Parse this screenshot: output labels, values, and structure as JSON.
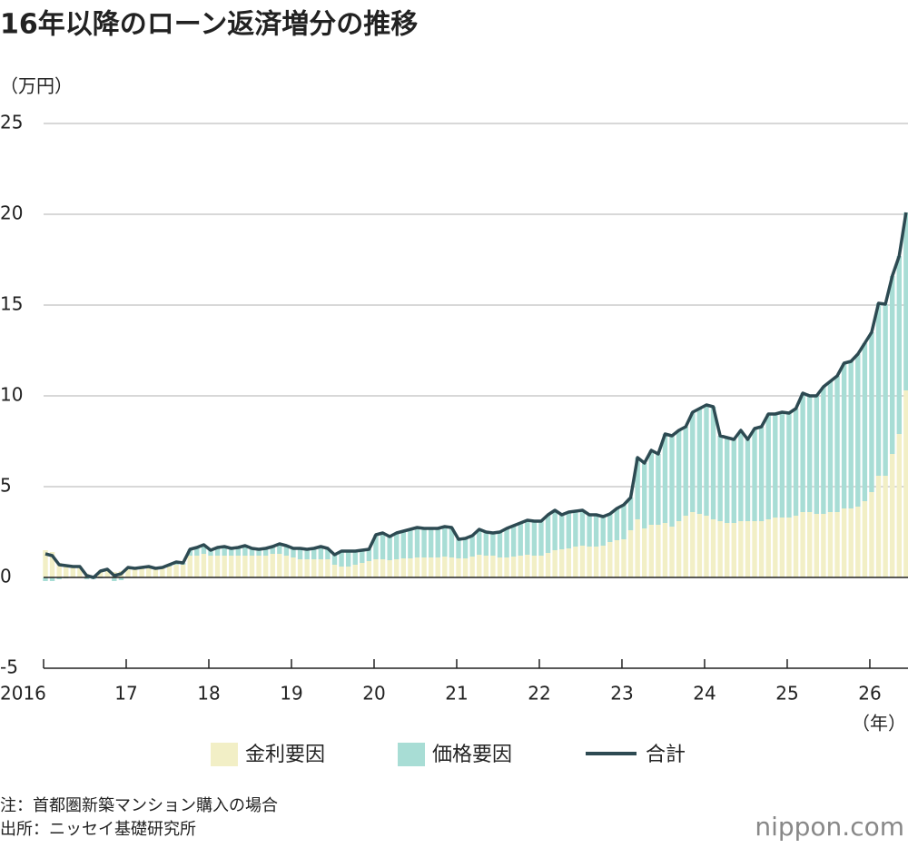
{
  "chart_data": {
    "type": "stacked-bar-line",
    "title": "16年以降のローン返済増分の推移",
    "y_unit": "（万円）",
    "x_unit": "（年）",
    "note": "注：首都圏新築マンション購入の場合",
    "source": "出所：ニッセイ基礎研究所",
    "brand": "nippon.com",
    "ylim": [
      -5,
      25
    ],
    "yticks": [
      -5,
      0,
      5,
      10,
      15,
      20,
      25
    ],
    "grid": true,
    "categories": [
      "2016",
      null,
      null,
      null,
      null,
      null,
      null,
      null,
      null,
      null,
      null,
      null,
      "17",
      null,
      null,
      null,
      null,
      null,
      null,
      null,
      null,
      null,
      null,
      null,
      "18",
      null,
      null,
      null,
      null,
      null,
      null,
      null,
      null,
      null,
      null,
      null,
      "19",
      null,
      null,
      null,
      null,
      null,
      null,
      null,
      null,
      null,
      null,
      null,
      "20",
      null,
      null,
      null,
      null,
      null,
      null,
      null,
      null,
      null,
      null,
      null,
      "21",
      null,
      null,
      null,
      null,
      null,
      null,
      null,
      null,
      null,
      null,
      null,
      "22",
      null,
      null,
      null,
      null,
      null,
      null,
      null,
      null,
      null,
      null,
      null,
      "23",
      null,
      null,
      null,
      null,
      null,
      null,
      null,
      null,
      null,
      null,
      null,
      "24",
      null,
      null,
      null,
      null,
      null,
      null,
      null,
      null,
      null,
      null,
      null,
      "25",
      null,
      null,
      null,
      null,
      null,
      null,
      null,
      null,
      null,
      null,
      null,
      "26",
      null,
      null,
      null,
      null,
      null
    ],
    "series": [
      {
        "name": "金利要因",
        "color": "#f2efc6",
        "kind": "bar",
        "values": [
          1.5,
          1.4,
          0.8,
          0.7,
          0.6,
          0.6,
          0.2,
          0.1,
          0.4,
          0.45,
          0.3,
          0.35,
          0.5,
          0.5,
          0.5,
          0.5,
          0.5,
          0.5,
          0.6,
          0.7,
          0.7,
          1.2,
          1.2,
          1.3,
          1.2,
          1.2,
          1.2,
          1.2,
          1.2,
          1.2,
          1.2,
          1.2,
          1.2,
          1.3,
          1.3,
          1.2,
          1.1,
          1.0,
          1.0,
          1.0,
          1.0,
          1.0,
          0.7,
          0.6,
          0.6,
          0.7,
          0.8,
          0.9,
          1.0,
          1.0,
          0.95,
          1.0,
          1.05,
          1.05,
          1.1,
          1.1,
          1.1,
          1.1,
          1.15,
          1.1,
          1.05,
          1.05,
          1.15,
          1.25,
          1.2,
          1.2,
          1.1,
          1.1,
          1.15,
          1.2,
          1.25,
          1.2,
          1.2,
          1.35,
          1.5,
          1.55,
          1.6,
          1.7,
          1.75,
          1.7,
          1.7,
          1.75,
          1.95,
          2.05,
          2.1,
          2.6,
          3.2,
          2.7,
          2.9,
          2.9,
          3.0,
          2.8,
          3.1,
          3.4,
          3.6,
          3.5,
          3.4,
          3.2,
          3.1,
          3.0,
          3.0,
          3.1,
          3.1,
          3.1,
          3.1,
          3.2,
          3.3,
          3.3,
          3.3,
          3.4,
          3.6,
          3.6,
          3.5,
          3.5,
          3.6,
          3.6,
          3.8,
          3.8,
          3.9,
          4.2,
          4.7,
          5.6,
          5.6,
          6.8,
          7.9,
          10.3
        ]
      },
      {
        "name": "価格要因",
        "color": "#a8ddd5",
        "kind": "bar",
        "values": [
          -0.2,
          -0.2,
          -0.1,
          -0.05,
          0,
          0,
          -0.1,
          -0.1,
          -0.05,
          0,
          -0.2,
          -0.15,
          0.05,
          0,
          0.05,
          0.1,
          0,
          0.05,
          0.1,
          0.15,
          0.1,
          0.35,
          0.45,
          0.5,
          0.3,
          0.45,
          0.5,
          0.4,
          0.45,
          0.55,
          0.4,
          0.35,
          0.4,
          0.4,
          0.55,
          0.55,
          0.5,
          0.6,
          0.55,
          0.6,
          0.7,
          0.6,
          0.55,
          0.85,
          0.85,
          0.75,
          0.7,
          0.65,
          1.35,
          1.45,
          1.3,
          1.45,
          1.5,
          1.6,
          1.65,
          1.6,
          1.6,
          1.6,
          1.65,
          1.65,
          1.05,
          1.1,
          1.15,
          1.4,
          1.3,
          1.25,
          1.4,
          1.6,
          1.7,
          1.8,
          1.9,
          1.9,
          1.9,
          2.1,
          2.2,
          1.9,
          2.0,
          1.95,
          1.95,
          1.75,
          1.75,
          1.6,
          1.55,
          1.75,
          1.9,
          1.8,
          3.4,
          3.6,
          4.1,
          3.9,
          4.9,
          5.0,
          5.0,
          4.9,
          5.5,
          5.8,
          6.1,
          6.2,
          4.7,
          4.7,
          4.6,
          5.0,
          4.5,
          5.1,
          5.2,
          5.8,
          5.7,
          5.8,
          5.75,
          5.9,
          6.55,
          6.4,
          6.5,
          7.0,
          7.2,
          7.5,
          8.0,
          8.1,
          8.4,
          8.7,
          8.8,
          9.5,
          9.45,
          9.8,
          9.8,
          9.8
        ]
      },
      {
        "name": "合計",
        "color": "#2d4a52",
        "kind": "line",
        "values": [
          1.3,
          1.2,
          0.7,
          0.65,
          0.6,
          0.6,
          0.1,
          0.0,
          0.35,
          0.45,
          0.1,
          0.2,
          0.55,
          0.5,
          0.55,
          0.6,
          0.5,
          0.55,
          0.7,
          0.85,
          0.8,
          1.55,
          1.65,
          1.8,
          1.5,
          1.65,
          1.7,
          1.6,
          1.65,
          1.75,
          1.6,
          1.55,
          1.6,
          1.7,
          1.85,
          1.75,
          1.6,
          1.6,
          1.55,
          1.6,
          1.7,
          1.6,
          1.25,
          1.45,
          1.45,
          1.45,
          1.5,
          1.55,
          2.35,
          2.45,
          2.25,
          2.45,
          2.55,
          2.65,
          2.75,
          2.7,
          2.7,
          2.7,
          2.8,
          2.75,
          2.1,
          2.15,
          2.3,
          2.65,
          2.5,
          2.45,
          2.5,
          2.7,
          2.85,
          3.0,
          3.15,
          3.1,
          3.1,
          3.45,
          3.7,
          3.45,
          3.6,
          3.65,
          3.7,
          3.45,
          3.45,
          3.35,
          3.5,
          3.8,
          4.0,
          4.4,
          6.6,
          6.3,
          7.0,
          6.8,
          7.9,
          7.8,
          8.1,
          8.3,
          9.1,
          9.3,
          9.5,
          9.4,
          7.8,
          7.7,
          7.6,
          8.1,
          7.6,
          8.2,
          8.3,
          9.0,
          9.0,
          9.1,
          9.05,
          9.3,
          10.15,
          10.0,
          10.0,
          10.5,
          10.8,
          11.1,
          11.8,
          11.9,
          12.3,
          12.9,
          13.5,
          15.1,
          15.05,
          16.6,
          17.7,
          20.1
        ]
      }
    ]
  }
}
